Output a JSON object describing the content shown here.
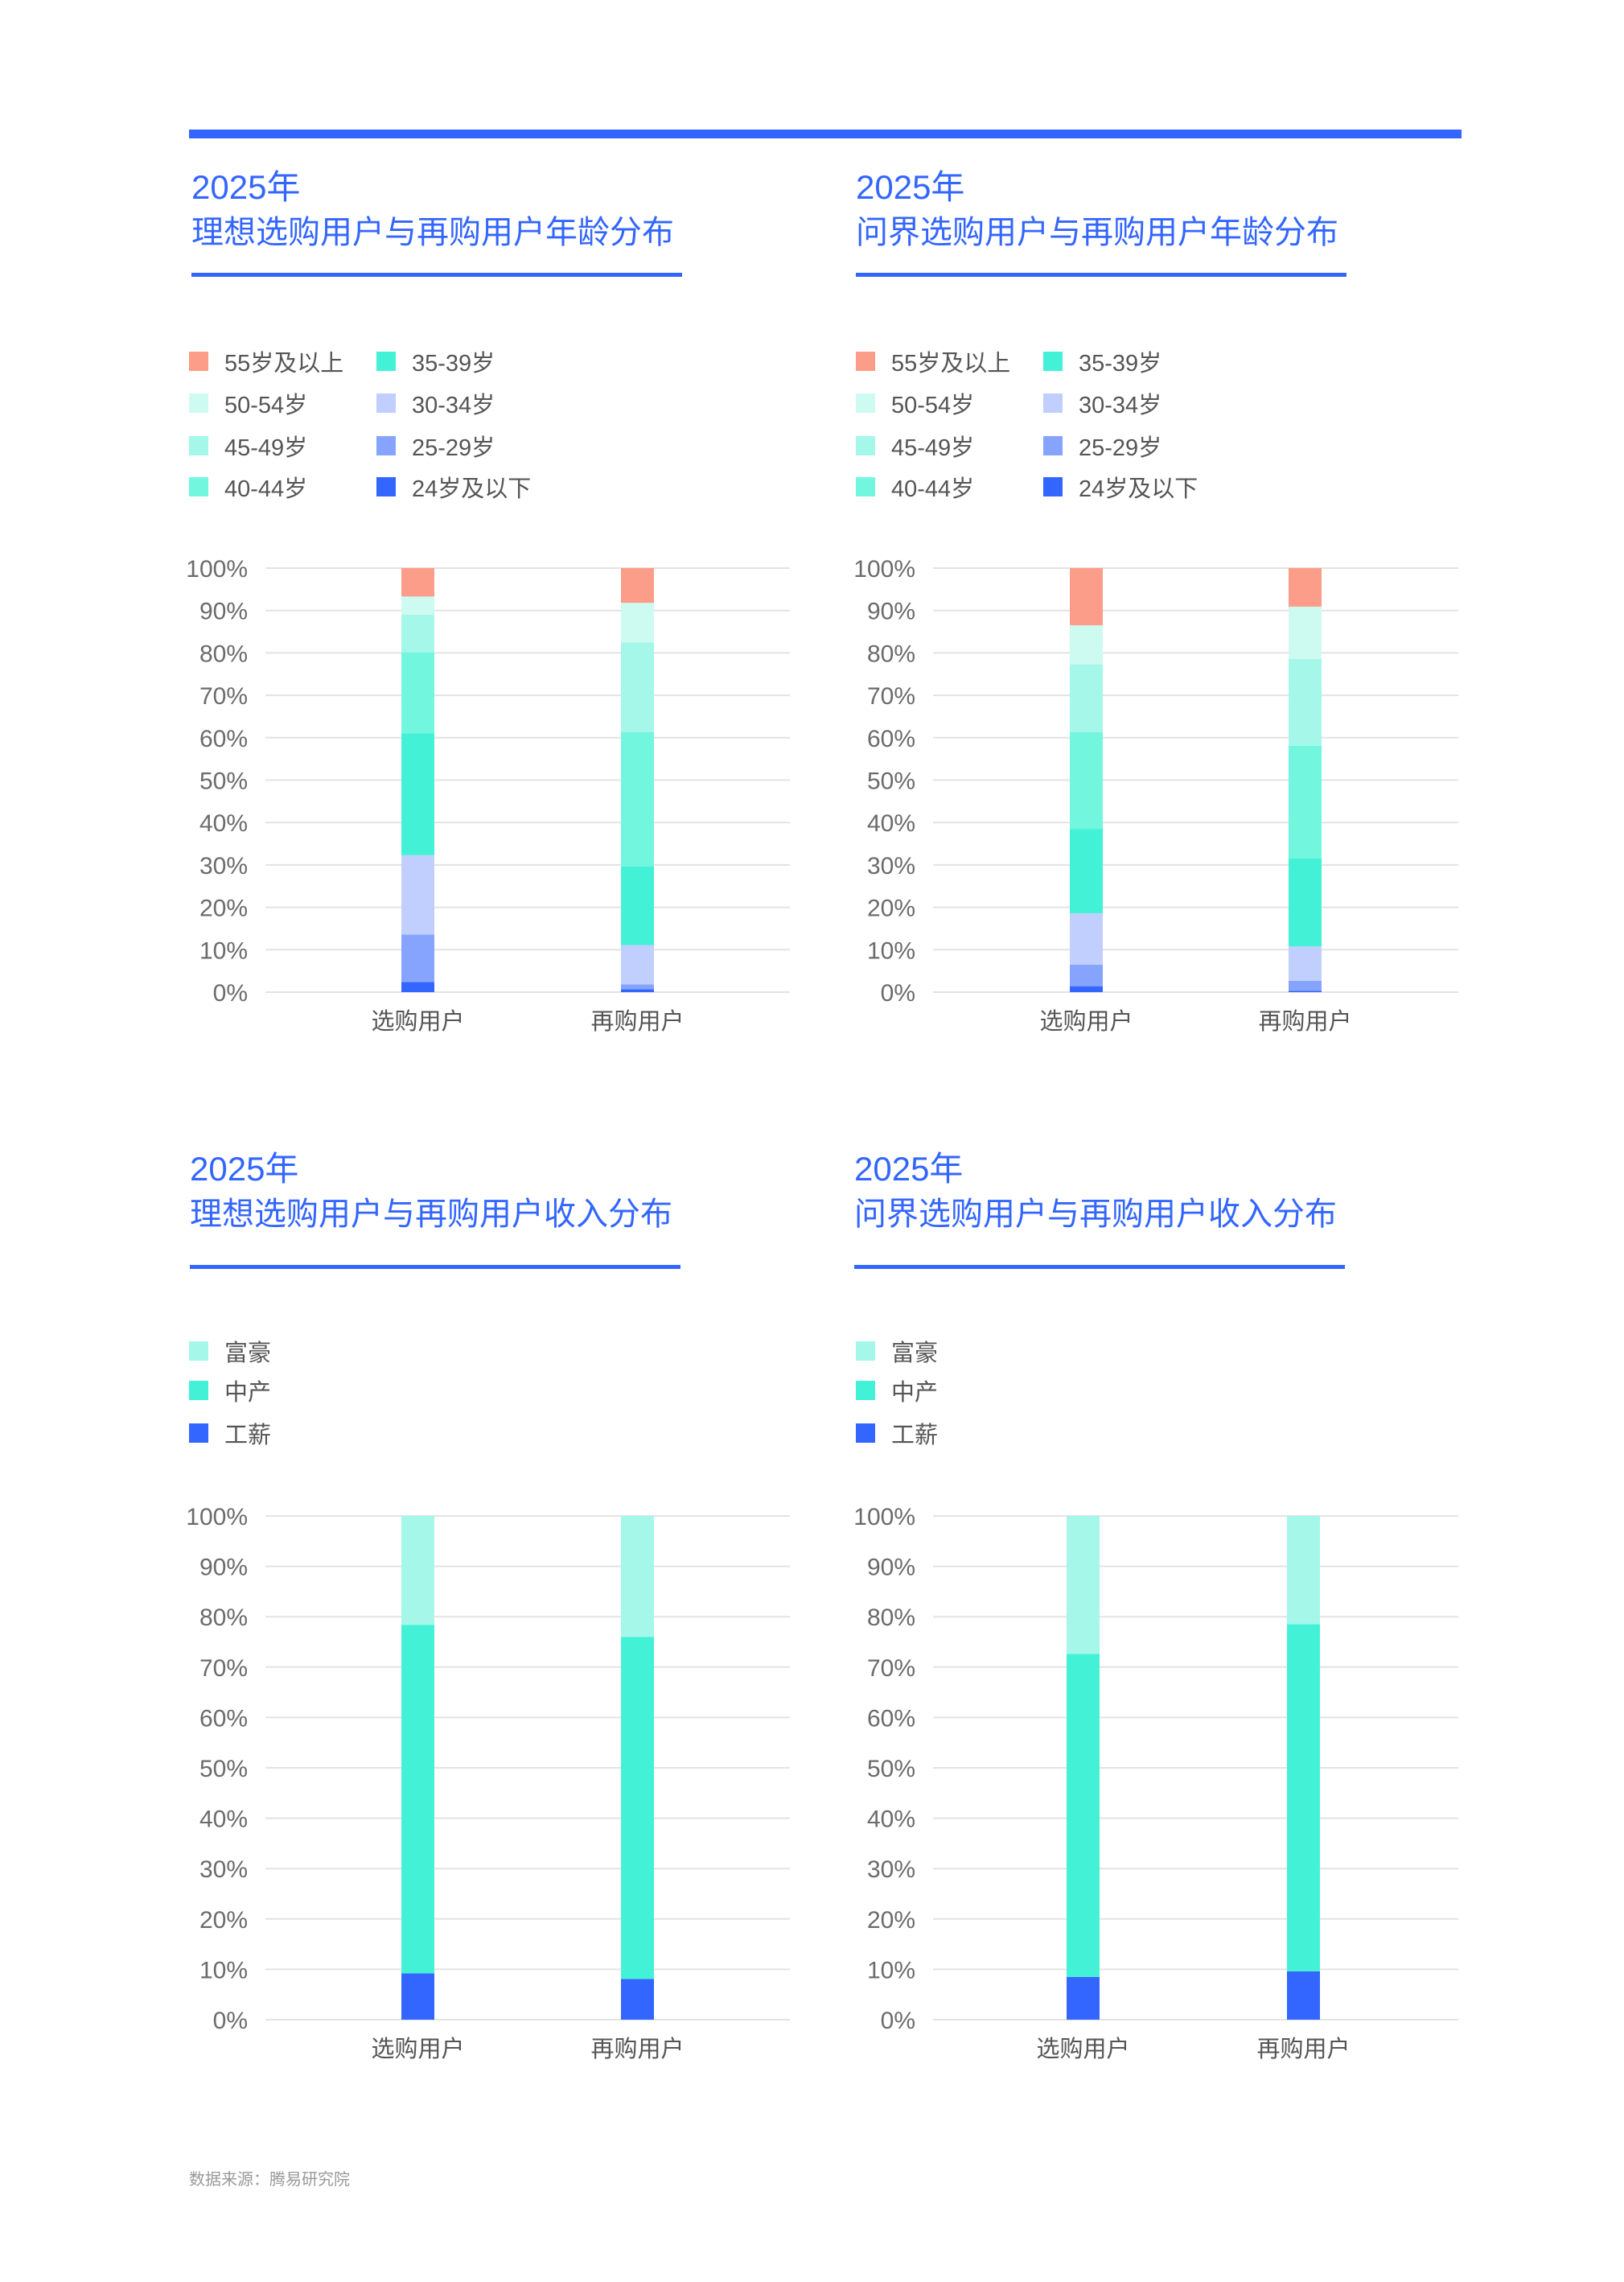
{
  "colors": {
    "accent": "#3366ff"
  },
  "panels": [
    {
      "year": "2025年",
      "title": "理想选购用户与再购用户年龄分布"
    },
    {
      "year": "2025年",
      "title": "问界选购用户与再购用户年龄分布"
    },
    {
      "year": "2025年",
      "title": "理想选购用户与再购用户收入分布"
    },
    {
      "year": "2025年",
      "title": "问界选购用户与再购用户收入分布"
    }
  ],
  "age_legend": [
    {
      "label": "55岁及以上",
      "color": "#fb9d89"
    },
    {
      "label": "50-54岁",
      "color": "#cdfbf2"
    },
    {
      "label": "45-49岁",
      "color": "#a4f7e9"
    },
    {
      "label": "40-44岁",
      "color": "#72f6de"
    },
    {
      "label": "35-39岁",
      "color": "#43f2d6"
    },
    {
      "label": "30-34岁",
      "color": "#c0cffe"
    },
    {
      "label": "25-29岁",
      "color": "#86a4fd"
    },
    {
      "label": "24岁及以下",
      "color": "#3366ff"
    }
  ],
  "income_legend": [
    {
      "label": "富豪",
      "color": "#a4f7e9"
    },
    {
      "label": "中产",
      "color": "#43f2d6"
    },
    {
      "label": "工薪",
      "color": "#3366ff"
    }
  ],
  "chart_data": [
    {
      "type": "bar",
      "stacked": true,
      "title": "理想选购用户与再购用户年龄分布",
      "categories": [
        "选购用户",
        "再购用户"
      ],
      "yticks": [
        "0%",
        "10%",
        "20%",
        "30%",
        "40%",
        "50%",
        "60%",
        "70%",
        "80%",
        "90%",
        "100%"
      ],
      "ylim": [
        0,
        100
      ],
      "series": [
        {
          "name": "24岁及以下",
          "values": [
            2.4,
            0.7
          ]
        },
        {
          "name": "25-29岁",
          "values": [
            11.2,
            1.1
          ]
        },
        {
          "name": "30-34岁",
          "values": [
            18.7,
            9.3
          ]
        },
        {
          "name": "35-39岁",
          "values": [
            28.7,
            18.5
          ]
        },
        {
          "name": "40-44岁",
          "values": [
            19.1,
            31.7
          ]
        },
        {
          "name": "45-49岁",
          "values": [
            8.9,
            21.2
          ]
        },
        {
          "name": "50-54岁",
          "values": [
            4.3,
            9.3
          ]
        },
        {
          "name": "55岁及以上",
          "values": [
            6.7,
            8.2
          ]
        }
      ]
    },
    {
      "type": "bar",
      "stacked": true,
      "title": "问界选购用户与再购用户年龄分布",
      "categories": [
        "选购用户",
        "再购用户"
      ],
      "yticks": [
        "0%",
        "10%",
        "20%",
        "30%",
        "40%",
        "50%",
        "60%",
        "70%",
        "80%",
        "90%",
        "100%"
      ],
      "ylim": [
        0,
        100
      ],
      "series": [
        {
          "name": "24岁及以下",
          "values": [
            1.4,
            0.3
          ]
        },
        {
          "name": "25-29岁",
          "values": [
            5.1,
            2.4
          ]
        },
        {
          "name": "30-34岁",
          "values": [
            12.1,
            8.1
          ]
        },
        {
          "name": "35-39岁",
          "values": [
            19.9,
            20.7
          ]
        },
        {
          "name": "40-44岁",
          "values": [
            22.8,
            26.6
          ]
        },
        {
          "name": "45-49岁",
          "values": [
            16.0,
            20.5
          ]
        },
        {
          "name": "50-54岁",
          "values": [
            9.2,
            12.3
          ]
        },
        {
          "name": "55岁及以上",
          "values": [
            13.5,
            9.1
          ]
        }
      ]
    },
    {
      "type": "bar",
      "stacked": true,
      "title": "理想选购用户与再购用户收入分布",
      "categories": [
        "选购用户",
        "再购用户"
      ],
      "yticks": [
        "0%",
        "10%",
        "20%",
        "30%",
        "40%",
        "50%",
        "60%",
        "70%",
        "80%",
        "90%",
        "100%"
      ],
      "ylim": [
        0,
        100
      ],
      "series": [
        {
          "name": "工薪",
          "values": [
            9.2,
            8.1
          ]
        },
        {
          "name": "中产",
          "values": [
            69.2,
            67.9
          ]
        },
        {
          "name": "富豪",
          "values": [
            21.6,
            24.0
          ]
        }
      ]
    },
    {
      "type": "bar",
      "stacked": true,
      "title": "问界选购用户与再购用户收入分布",
      "categories": [
        "选购用户",
        "再购用户"
      ],
      "yticks": [
        "0%",
        "10%",
        "20%",
        "30%",
        "40%",
        "50%",
        "60%",
        "70%",
        "80%",
        "90%",
        "100%"
      ],
      "ylim": [
        0,
        100
      ],
      "series": [
        {
          "name": "工薪",
          "values": [
            8.5,
            9.6
          ]
        },
        {
          "name": "中产",
          "values": [
            64.1,
            68.9
          ]
        },
        {
          "name": "富豪",
          "values": [
            27.4,
            21.5
          ]
        }
      ]
    }
  ],
  "footer": {
    "source": "数据来源：腾易研究院"
  }
}
